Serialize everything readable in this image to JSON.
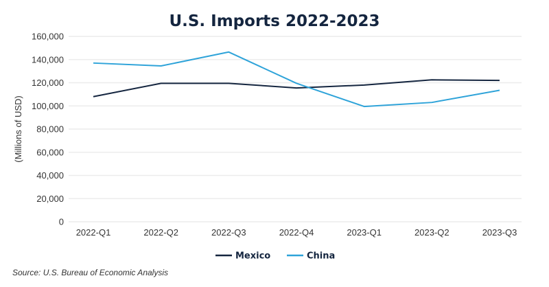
{
  "chart_data": {
    "type": "line",
    "title": "U.S. Imports 2022-2023",
    "xlabel": "",
    "ylabel": "(Millions of USD)",
    "categories": [
      "2022-Q1",
      "2022-Q2",
      "2022-Q3",
      "2022-Q4",
      "2023-Q1",
      "2023-Q2",
      "2023-Q3"
    ],
    "ylim": [
      0,
      160000
    ],
    "yticks": [
      0,
      20000,
      40000,
      60000,
      80000,
      100000,
      120000,
      140000,
      160000
    ],
    "ytick_labels": [
      "0",
      "20,000",
      "40,000",
      "60,000",
      "80,000",
      "100,000",
      "120,000",
      "140,000",
      "160,000"
    ],
    "grid": true,
    "legend_position": "bottom-center",
    "series": [
      {
        "name": "Mexico",
        "color": "#14253f",
        "values": [
          108000,
          119500,
          119500,
          115500,
          118000,
          122500,
          122000
        ]
      },
      {
        "name": "China",
        "color": "#2ea3d9",
        "values": [
          137000,
          134500,
          146500,
          119500,
          99500,
          103000,
          113500
        ]
      }
    ],
    "source": "Source: U.S. Bureau of Economic Analysis"
  }
}
